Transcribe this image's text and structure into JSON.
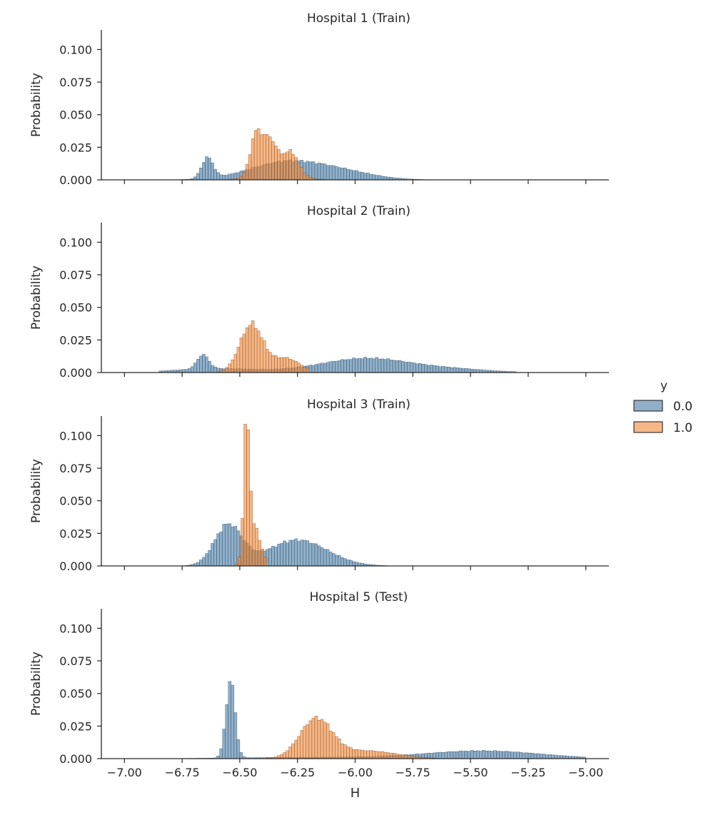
{
  "chart_data": {
    "type": "bar",
    "subtype": "histogram-facet-grid",
    "xlabel": "H",
    "ylabel": "Probability",
    "xlim": [
      -7.1,
      -4.9
    ],
    "ylim": [
      0,
      0.115
    ],
    "xticks": [
      -7.0,
      -6.75,
      -6.5,
      -6.25,
      -6.0,
      -5.75,
      -5.5,
      -5.25,
      -5.0
    ],
    "xtick_labels": [
      "−7.00",
      "−6.75",
      "−6.50",
      "−6.25",
      "−6.00",
      "−5.75",
      "−5.50",
      "−5.25",
      "−5.00"
    ],
    "yticks": [
      0.0,
      0.025,
      0.05,
      0.075,
      0.1
    ],
    "ytick_labels": [
      "0.000",
      "0.025",
      "0.050",
      "0.075",
      "0.100"
    ],
    "bin_width": 0.0125,
    "legend": {
      "title": "y",
      "position": "right",
      "entries": [
        {
          "label": "0.0",
          "color": "#4c7ea8"
        },
        {
          "label": "1.0",
          "color": "#f08a3c"
        }
      ]
    },
    "panels": [
      {
        "title": "Hospital 1 (Train)",
        "series": [
          {
            "name": "0.0",
            "color": "#4c7ea8",
            "range": [
              -7.0,
              -5.0
            ],
            "components": [
              {
                "mu": -6.64,
                "sigma": 0.025,
                "peak": 0.016
              },
              {
                "mu": -6.3,
                "sigma": 0.16,
                "peak": 0.0135
              },
              {
                "mu": -6.05,
                "sigma": 0.14,
                "peak": 0.005
              }
            ]
          },
          {
            "name": "1.0",
            "color": "#f08a3c",
            "range": [
              -6.55,
              -6.1
            ],
            "components": [
              {
                "mu": -6.43,
                "sigma": 0.025,
                "peak": 0.031
              },
              {
                "mu": -6.37,
                "sigma": 0.03,
                "peak": 0.026
              },
              {
                "mu": -6.28,
                "sigma": 0.035,
                "peak": 0.018
              },
              {
                "mu": -6.35,
                "sigma": 0.09,
                "peak": 0.005
              }
            ]
          }
        ]
      },
      {
        "title": "Hospital 2 (Train)",
        "series": [
          {
            "name": "0.0",
            "color": "#4c7ea8",
            "range": [
              -6.85,
              -5.3
            ],
            "components": [
              {
                "mu": -6.66,
                "sigma": 0.025,
                "peak": 0.011
              },
              {
                "mu": -6.6,
                "sigma": 0.18,
                "peak": 0.003
              },
              {
                "mu": -5.95,
                "sigma": 0.2,
                "peak": 0.011
              },
              {
                "mu": -5.55,
                "sigma": 0.15,
                "peak": 0.002
              }
            ]
          },
          {
            "name": "1.0",
            "color": "#f08a3c",
            "range": [
              -6.6,
              -6.2
            ],
            "components": [
              {
                "mu": -6.45,
                "sigma": 0.05,
                "peak": 0.037
              },
              {
                "mu": -6.3,
                "sigma": 0.06,
                "peak": 0.011
              }
            ]
          }
        ]
      },
      {
        "title": "Hospital 3 (Train)",
        "series": [
          {
            "name": "0.0",
            "color": "#4c7ea8",
            "range": [
              -6.8,
              -5.85
            ],
            "components": [
              {
                "mu": -6.55,
                "sigma": 0.06,
                "peak": 0.031
              },
              {
                "mu": -6.25,
                "sigma": 0.13,
                "peak": 0.02
              }
            ]
          },
          {
            "name": "1.0",
            "color": "#f08a3c",
            "range": [
              -6.52,
              -6.38
            ],
            "components": [
              {
                "mu": -6.47,
                "sigma": 0.012,
                "peak": 0.1
              },
              {
                "mu": -6.44,
                "sigma": 0.03,
                "peak": 0.03
              }
            ]
          }
        ]
      },
      {
        "title": "Hospital 5 (Test)",
        "series": [
          {
            "name": "0.0",
            "color": "#4c7ea8",
            "range": [
              -7.0,
              -5.0
            ],
            "components": [
              {
                "mu": -6.54,
                "sigma": 0.02,
                "peak": 0.06
              },
              {
                "mu": -6.2,
                "sigma": 0.3,
                "peak": 0.001
              },
              {
                "mu": -5.45,
                "sigma": 0.25,
                "peak": 0.006
              }
            ]
          },
          {
            "name": "1.0",
            "color": "#f08a3c",
            "range": [
              -6.6,
              -5.65
            ],
            "components": [
              {
                "mu": -6.17,
                "sigma": 0.07,
                "peak": 0.03
              },
              {
                "mu": -5.95,
                "sigma": 0.13,
                "peak": 0.006
              }
            ]
          }
        ]
      }
    ]
  }
}
